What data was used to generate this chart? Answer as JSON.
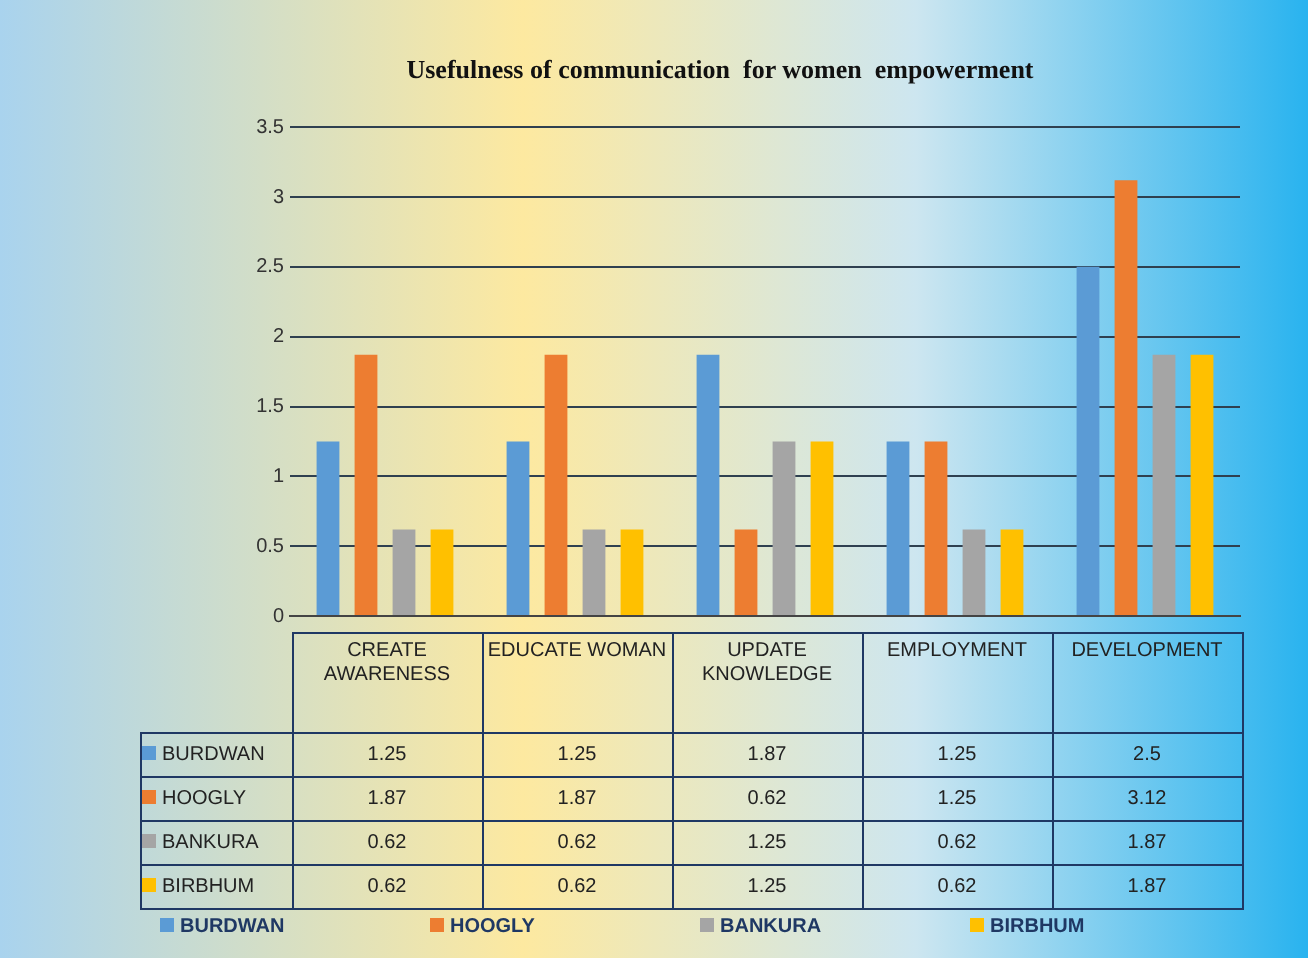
{
  "chart_data": {
    "type": "bar",
    "title": "Usefulness of communication  for women  empowerment",
    "categories": [
      "CREATE AWARENESS",
      "EDUCATE WOMAN",
      "UPDATE KNOWLEDGE",
      "EMPLOYMENT",
      "DEVELOPMENT"
    ],
    "series": [
      {
        "name": "BURDWAN",
        "color": "#5b9bd5",
        "values": [
          1.25,
          1.25,
          1.87,
          1.25,
          2.5
        ]
      },
      {
        "name": "HOOGLY",
        "color": "#ed7d31",
        "values": [
          1.87,
          1.87,
          0.62,
          1.25,
          3.12
        ]
      },
      {
        "name": "BANKURA",
        "color": "#a5a5a5",
        "values": [
          0.62,
          0.62,
          1.25,
          0.62,
          1.87
        ]
      },
      {
        "name": "BIRBHUM",
        "color": "#ffc000",
        "values": [
          0.62,
          0.62,
          1.25,
          0.62,
          1.87
        ]
      }
    ],
    "ylim": [
      0,
      3.5
    ],
    "yticks": [
      0,
      0.5,
      1,
      1.5,
      2,
      2.5,
      3,
      3.5
    ],
    "grid": "y",
    "legend": "bottom",
    "data_labels": true
  }
}
